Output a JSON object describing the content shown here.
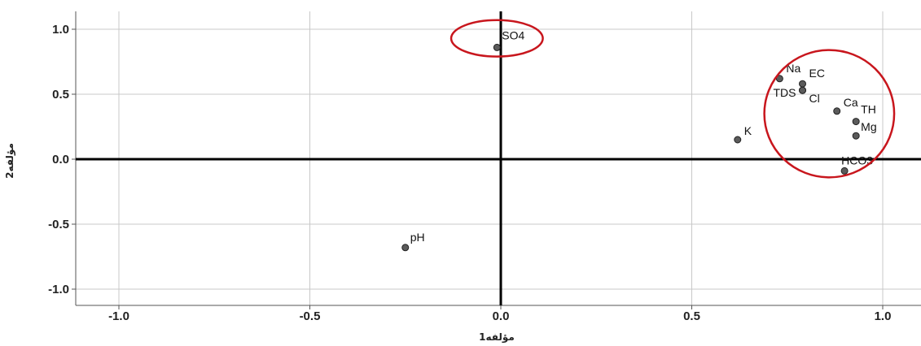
{
  "chart_data": {
    "type": "scatter",
    "title": "",
    "xlabel": "مؤلفه1",
    "ylabel": "مؤلفه2",
    "xlim": [
      -1.1,
      1.1
    ],
    "ylim": [
      -1.1,
      1.1
    ],
    "grid": true,
    "xticks": [
      -1.0,
      -0.5,
      0.0,
      0.5,
      1.0
    ],
    "yticks": [
      1.0,
      0.5,
      0.0,
      -0.5,
      -1.0
    ],
    "xtick_labels": [
      "-1.0",
      "-0.5",
      "0.0",
      "0.5",
      "1.0"
    ],
    "ytick_labels": [
      "1.0",
      "0.5",
      "0.0",
      "-0.5",
      "-1.0"
    ],
    "points": [
      {
        "label": "SO4",
        "x": -0.01,
        "y": 0.86
      },
      {
        "label": "Na",
        "x": 0.73,
        "y": 0.62
      },
      {
        "label": "EC",
        "x": 0.79,
        "y": 0.58
      },
      {
        "label": "TDS",
        "x": 0.79,
        "y": 0.53
      },
      {
        "label": "Cl",
        "x": 0.79,
        "y": 0.53
      },
      {
        "label": "Ca",
        "x": 0.88,
        "y": 0.37
      },
      {
        "label": "TH",
        "x": 0.93,
        "y": 0.29
      },
      {
        "label": "Mg",
        "x": 0.93,
        "y": 0.18
      },
      {
        "label": "K",
        "x": 0.62,
        "y": 0.15
      },
      {
        "label": "HCO3",
        "x": 0.9,
        "y": -0.09
      },
      {
        "label": "pH",
        "x": -0.25,
        "y": -0.68
      }
    ],
    "annotations": [
      {
        "shape": "ellipse",
        "color": "#c8161d",
        "center_x": -0.01,
        "center_y": 0.93,
        "rx": 0.12,
        "ry": 0.14
      },
      {
        "shape": "ellipse",
        "color": "#c8161d",
        "center_x": 0.86,
        "center_y": 0.35,
        "rx": 0.17,
        "ry": 0.49
      }
    ],
    "colors": {
      "point_fill": "#5b5b5b",
      "axis": "#000000",
      "grid": "#c8c8c8",
      "annotation": "#c8161d"
    }
  }
}
